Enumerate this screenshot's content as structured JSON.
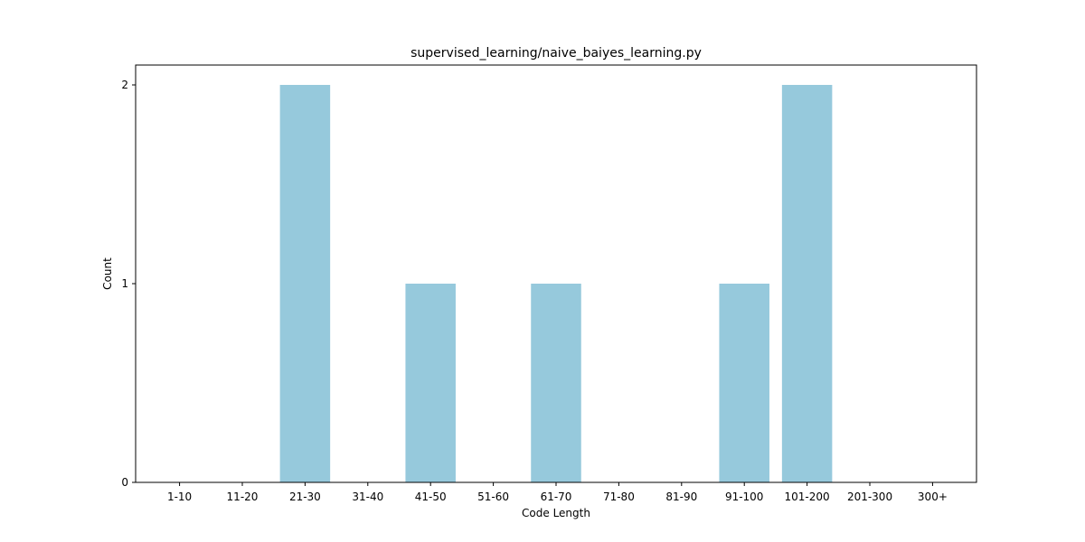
{
  "chart_data": {
    "type": "bar",
    "title": "supervised_learning/naive_baiyes_learning.py",
    "xlabel": "Code Length",
    "ylabel": "Count",
    "categories": [
      "1-10",
      "11-20",
      "21-30",
      "31-40",
      "41-50",
      "51-60",
      "61-70",
      "71-80",
      "81-90",
      "91-100",
      "101-200",
      "201-300",
      "300+"
    ],
    "values": [
      0,
      0,
      2,
      0,
      1,
      0,
      1,
      0,
      0,
      1,
      2,
      0,
      0
    ],
    "yticks": [
      "0",
      "1",
      "2"
    ],
    "ylim": [
      0,
      2.1
    ],
    "grid": false,
    "bar_color": "#96c9dc"
  }
}
